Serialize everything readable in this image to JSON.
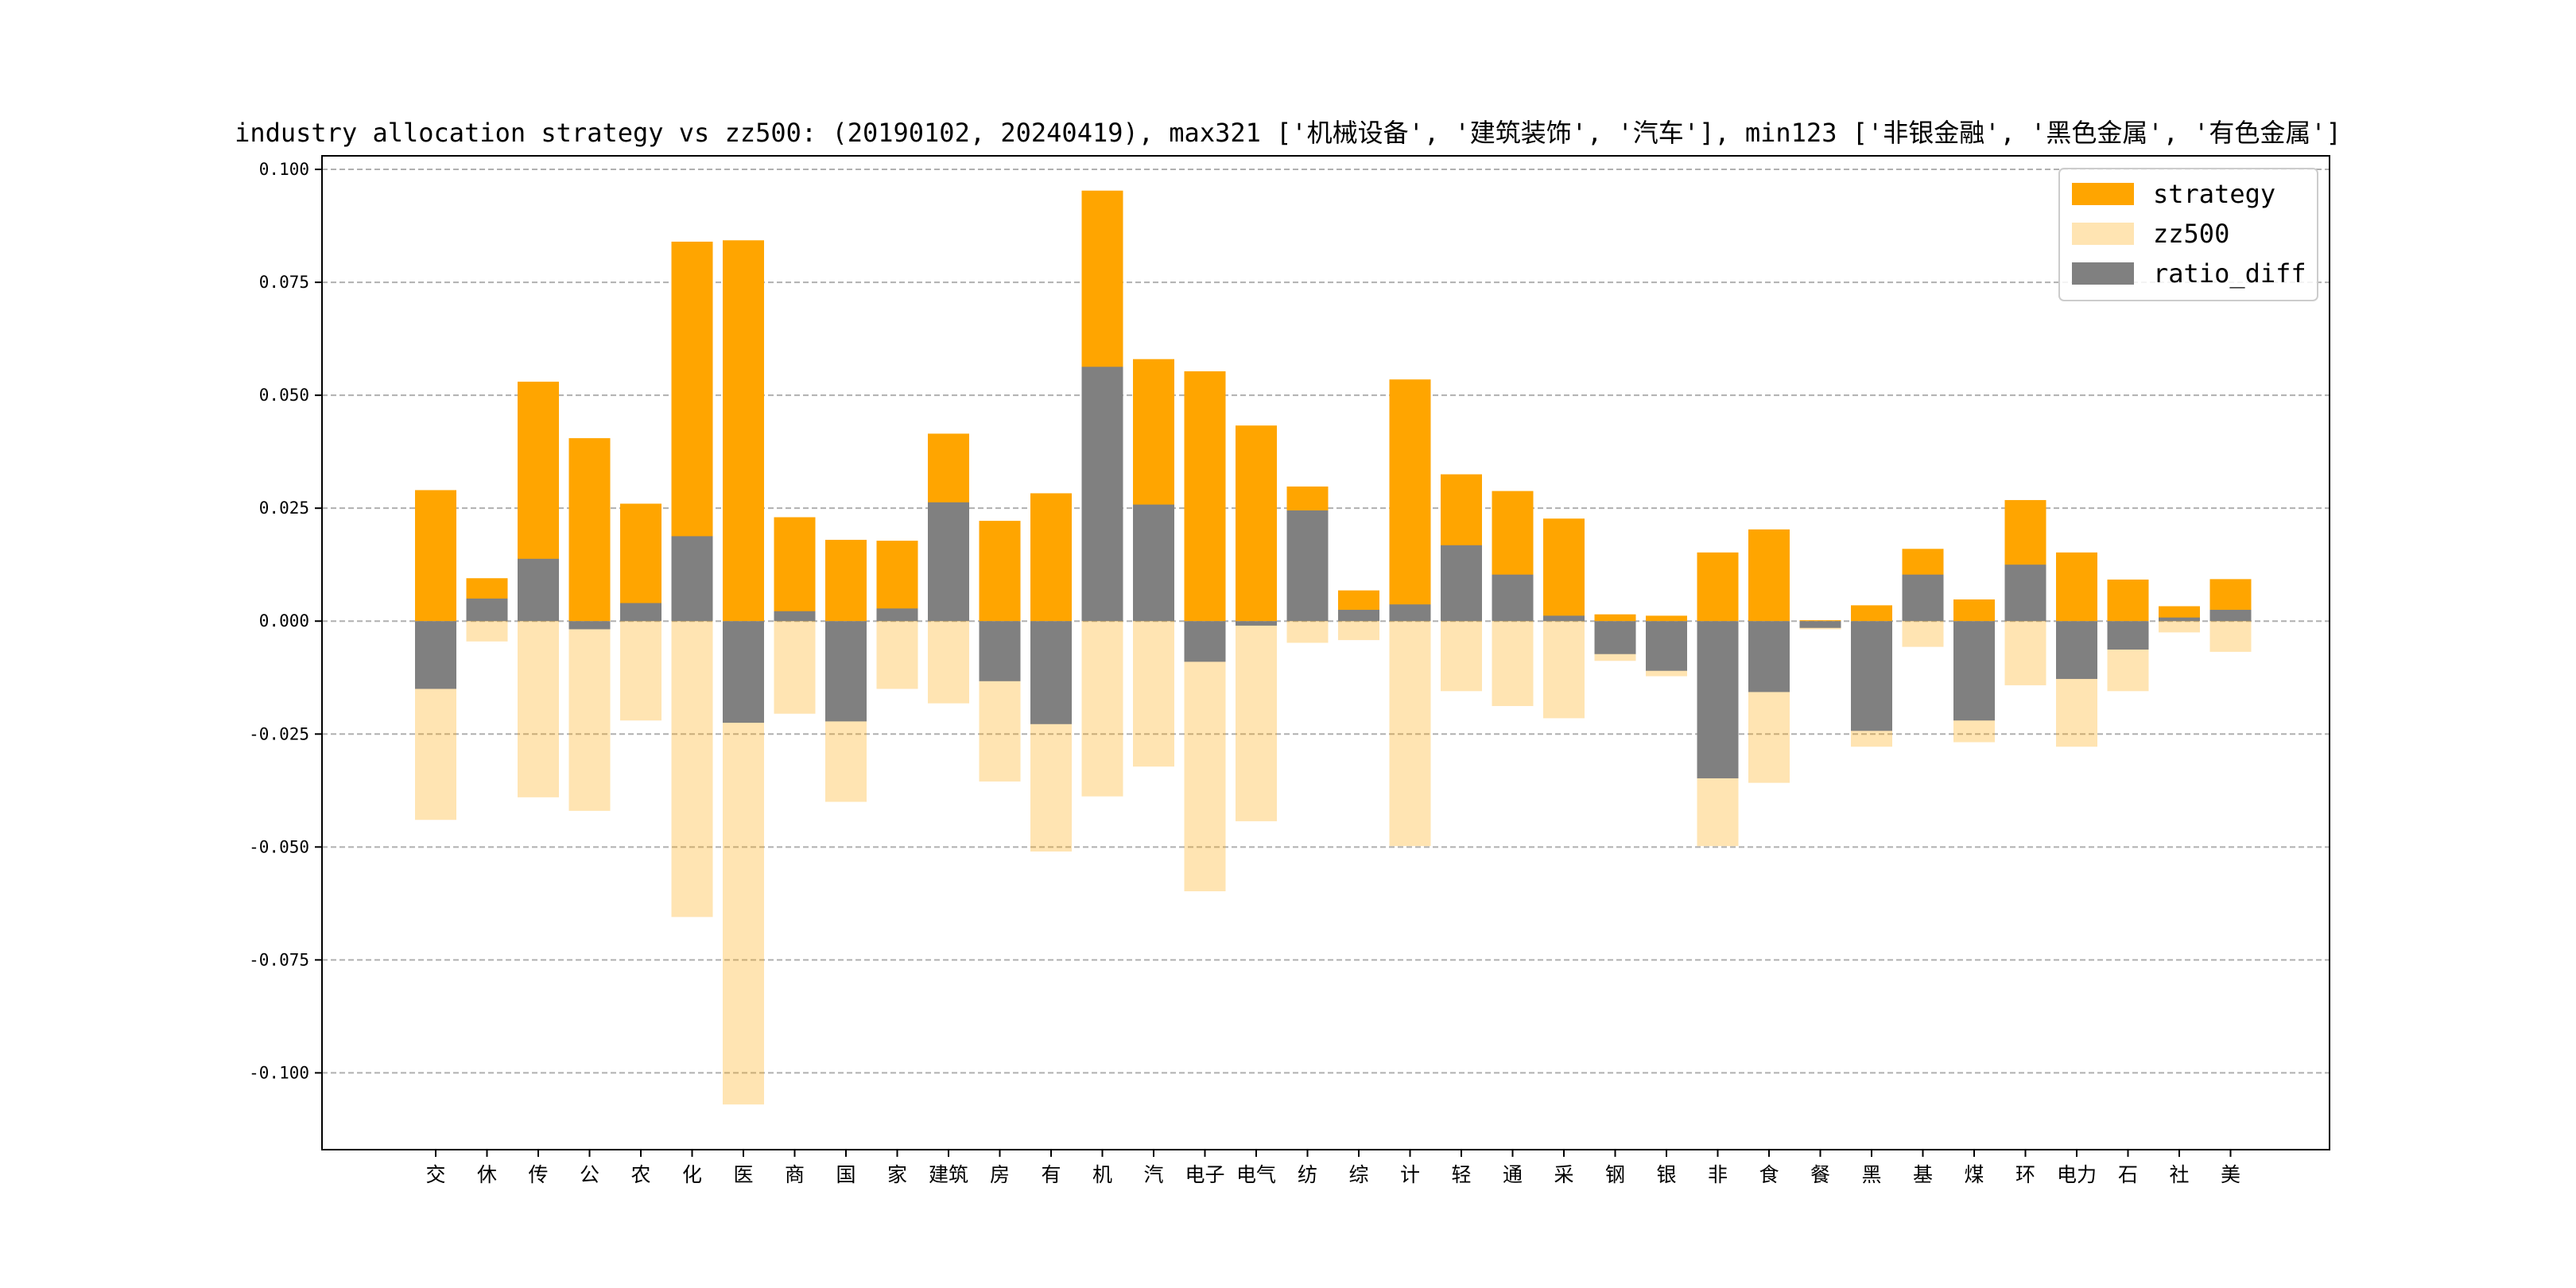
{
  "chart_data": {
    "type": "bar",
    "title": "industry allocation strategy vs zz500: (20190102, 20240419), max321 ['机械设备', '建筑装饰', '汽车'], min123 ['非银金融', '黑色金属', '有色金属']",
    "xlabel": "",
    "ylabel": "",
    "ylim": [
      -0.117,
      0.103
    ],
    "yticks": [
      0.1,
      0.075,
      0.05,
      0.025,
      0.0,
      -0.025,
      -0.05,
      -0.075,
      -0.1
    ],
    "ytick_labels": [
      "0.100",
      "0.075",
      "0.050",
      "0.025",
      "0.000",
      "-0.025",
      "-0.050",
      "-0.075",
      "-0.100"
    ],
    "grid": "y-dashed",
    "legend_position": "top-right",
    "categories": [
      "交",
      "休",
      "传",
      "公",
      "农",
      "化",
      "医",
      "商",
      "国",
      "家",
      "建筑",
      "房",
      "有",
      "机",
      "汽",
      "电子",
      "电气",
      "纺",
      "综",
      "计",
      "轻",
      "通",
      "采",
      "钢",
      "银",
      "非",
      "食",
      "餐",
      "黑",
      "基",
      "煤",
      "环",
      "电力",
      "石",
      "社",
      "美"
    ],
    "series": [
      {
        "name": "strategy",
        "color": "#ffa500",
        "opacity": 1.0,
        "values": [
          0.029,
          0.0095,
          0.053,
          0.0405,
          0.026,
          0.084,
          0.0843,
          0.023,
          0.018,
          0.0178,
          0.0415,
          0.0222,
          0.0283,
          0.0953,
          0.058,
          0.0553,
          0.0433,
          0.0298,
          0.0068,
          0.0535,
          0.0325,
          0.0288,
          0.0227,
          0.0015,
          0.0012,
          0.0152,
          0.0203,
          0.0002,
          0.0035,
          0.016,
          0.0048,
          0.0268,
          0.0152,
          0.0092,
          0.0033,
          0.0093
        ]
      },
      {
        "name": "zz500",
        "color": "#ffa500",
        "opacity": 0.3,
        "values": [
          -0.044,
          -0.0045,
          -0.039,
          -0.042,
          -0.022,
          -0.0655,
          -0.107,
          -0.0205,
          -0.04,
          -0.015,
          -0.0182,
          -0.0355,
          -0.051,
          -0.0388,
          -0.0322,
          -0.0598,
          -0.0443,
          -0.0048,
          -0.0042,
          -0.0498,
          -0.0155,
          -0.0188,
          -0.0215,
          -0.0088,
          -0.0122,
          -0.0498,
          -0.0358,
          -0.0018,
          -0.0278,
          -0.0057,
          -0.0268,
          -0.0142,
          -0.0278,
          -0.0155,
          -0.0025,
          -0.0068
        ]
      },
      {
        "name": "ratio_diff",
        "color": "#808080",
        "opacity": 1.0,
        "values": [
          -0.015,
          0.005,
          0.0138,
          -0.0018,
          0.004,
          0.0188,
          -0.0225,
          0.0022,
          -0.0222,
          0.0028,
          0.0263,
          -0.0133,
          -0.0228,
          0.0563,
          0.0258,
          -0.009,
          -0.001,
          0.0245,
          0.0025,
          0.0037,
          0.0168,
          0.0103,
          0.0012,
          -0.0073,
          -0.011,
          -0.0348,
          -0.0157,
          -0.0015,
          -0.0243,
          0.0103,
          -0.022,
          0.0125,
          -0.0128,
          -0.0063,
          0.0008,
          0.0025
        ]
      }
    ]
  }
}
